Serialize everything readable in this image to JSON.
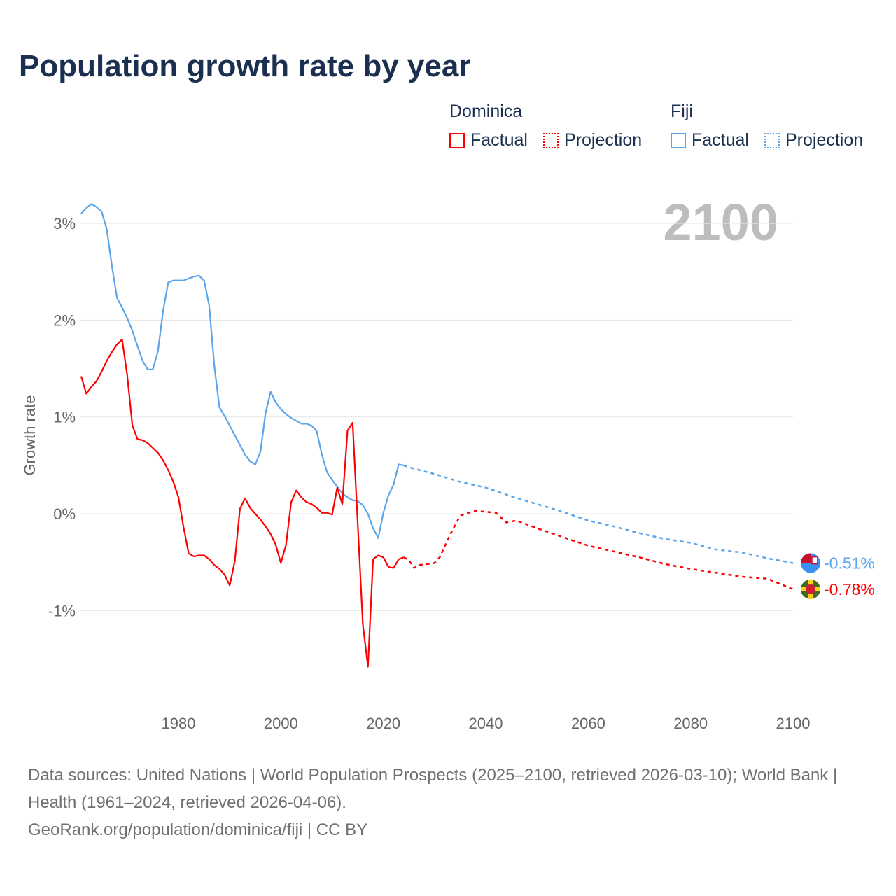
{
  "title": "Population growth rate by year",
  "legend": {
    "groups": [
      {
        "name": "Dominica",
        "color": "#ff0000",
        "items": [
          "Factual",
          "Projection"
        ]
      },
      {
        "name": "Fiji",
        "color": "#5aa5ec",
        "items": [
          "Factual",
          "Projection"
        ]
      }
    ]
  },
  "current_year": "2100",
  "footer": {
    "sources": "Data sources: United Nations | World Population Prospects (2025–2100, retrieved 2026-03-10); World Bank | Health (1961–2024, retrieved 2026-04-06).",
    "credit": "GeoRank.org/population/dominica/fiji | CC BY"
  },
  "chart_data": {
    "type": "line",
    "title": "Population growth rate by year",
    "xlabel": "",
    "ylabel": "Growth rate",
    "xlim": [
      1961,
      2100
    ],
    "ylim": [
      -1.9,
      3.3
    ],
    "xticks": [
      1980,
      2000,
      2020,
      2040,
      2060,
      2080,
      2100
    ],
    "xtick_labels": [
      "1980",
      "2000",
      "2020",
      "2040",
      "2060",
      "2080",
      "2100"
    ],
    "yticks": [
      3,
      2,
      1,
      0,
      -1
    ],
    "ytick_labels": [
      "3%",
      "2%",
      "1%",
      "0%",
      "-1%"
    ],
    "grid": true,
    "legend_position": "top-right",
    "series": [
      {
        "name": "Fiji",
        "color": "#5aa5ec",
        "end_label": "-0.51%",
        "factual": {
          "x": [
            1961,
            1962,
            1963,
            1964,
            1965,
            1966,
            1967,
            1968,
            1969,
            1970,
            1971,
            1972,
            1973,
            1974,
            1975,
            1976,
            1977,
            1978,
            1979,
            1980,
            1981,
            1982,
            1983,
            1984,
            1985,
            1986,
            1987,
            1988,
            1989,
            1990,
            1991,
            1992,
            1993,
            1994,
            1995,
            1996,
            1997,
            1998,
            1999,
            2000,
            2001,
            2002,
            2003,
            2004,
            2005,
            2006,
            2007,
            2008,
            2009,
            2010,
            2011,
            2012,
            2013,
            2014,
            2015,
            2016,
            2017,
            2018,
            2019,
            2020,
            2021,
            2022,
            2023,
            2024
          ],
          "y": [
            3.1,
            3.16,
            3.2,
            3.17,
            3.12,
            2.94,
            2.56,
            2.23,
            2.13,
            2.02,
            1.89,
            1.73,
            1.58,
            1.49,
            1.49,
            1.68,
            2.1,
            2.39,
            2.41,
            2.41,
            2.41,
            2.43,
            2.45,
            2.46,
            2.41,
            2.15,
            1.53,
            1.1,
            1.01,
            0.91,
            0.81,
            0.71,
            0.61,
            0.54,
            0.51,
            0.64,
            1.04,
            1.26,
            1.15,
            1.08,
            1.03,
            0.99,
            0.96,
            0.93,
            0.93,
            0.91,
            0.85,
            0.61,
            0.43,
            0.35,
            0.28,
            0.21,
            0.17,
            0.14,
            0.13,
            0.09,
            0.0,
            -0.15,
            -0.25,
            0.01,
            0.19,
            0.3,
            0.51,
            0.5
          ]
        },
        "projection": {
          "x": [
            2024,
            2025,
            2030,
            2035,
            2040,
            2045,
            2050,
            2055,
            2060,
            2065,
            2070,
            2075,
            2080,
            2085,
            2090,
            2095,
            2100
          ],
          "y": [
            0.5,
            0.48,
            0.41,
            0.33,
            0.27,
            0.18,
            0.1,
            0.02,
            -0.07,
            -0.13,
            -0.2,
            -0.26,
            -0.3,
            -0.37,
            -0.4,
            -0.46,
            -0.51
          ]
        }
      },
      {
        "name": "Dominica",
        "color": "#ff0000",
        "end_label": "-0.78%",
        "factual": {
          "x": [
            1961,
            1962,
            1963,
            1964,
            1965,
            1966,
            1967,
            1968,
            1969,
            1970,
            1971,
            1972,
            1973,
            1974,
            1975,
            1976,
            1977,
            1978,
            1979,
            1980,
            1981,
            1982,
            1983,
            1984,
            1985,
            1986,
            1987,
            1988,
            1989,
            1990,
            1991,
            1992,
            1993,
            1994,
            1995,
            1996,
            1997,
            1998,
            1999,
            2000,
            2001,
            2002,
            2003,
            2004,
            2005,
            2006,
            2007,
            2008,
            2009,
            2010,
            2011,
            2012,
            2013,
            2014,
            2015,
            2016,
            2017,
            2018,
            2019,
            2020,
            2021,
            2022,
            2023,
            2024
          ],
          "y": [
            1.42,
            1.24,
            1.31,
            1.37,
            1.47,
            1.58,
            1.67,
            1.75,
            1.8,
            1.43,
            0.91,
            0.77,
            0.76,
            0.73,
            0.68,
            0.63,
            0.55,
            0.45,
            0.33,
            0.17,
            -0.14,
            -0.41,
            -0.44,
            -0.43,
            -0.43,
            -0.47,
            -0.53,
            -0.57,
            -0.63,
            -0.74,
            -0.49,
            0.05,
            0.16,
            0.06,
            0.0,
            -0.06,
            -0.13,
            -0.21,
            -0.32,
            -0.51,
            -0.32,
            0.12,
            0.24,
            0.17,
            0.12,
            0.1,
            0.06,
            0.01,
            0.01,
            -0.01,
            0.27,
            0.1,
            0.86,
            0.94,
            -0.1,
            -1.14,
            -1.58,
            -0.47,
            -0.43,
            -0.45,
            -0.55,
            -0.56,
            -0.47,
            -0.45
          ]
        },
        "projection": {
          "x": [
            2024,
            2025,
            2026,
            2027,
            2030,
            2031,
            2033,
            2035,
            2036,
            2038,
            2040,
            2042,
            2044,
            2046,
            2050,
            2055,
            2060,
            2065,
            2070,
            2075,
            2080,
            2085,
            2090,
            2095,
            2100
          ],
          "y": [
            -0.45,
            -0.48,
            -0.56,
            -0.53,
            -0.51,
            -0.45,
            -0.22,
            -0.02,
            0.0,
            0.03,
            0.02,
            0.01,
            -0.09,
            -0.07,
            -0.15,
            -0.24,
            -0.33,
            -0.39,
            -0.45,
            -0.52,
            -0.57,
            -0.61,
            -0.65,
            -0.67,
            -0.78
          ]
        }
      }
    ]
  }
}
